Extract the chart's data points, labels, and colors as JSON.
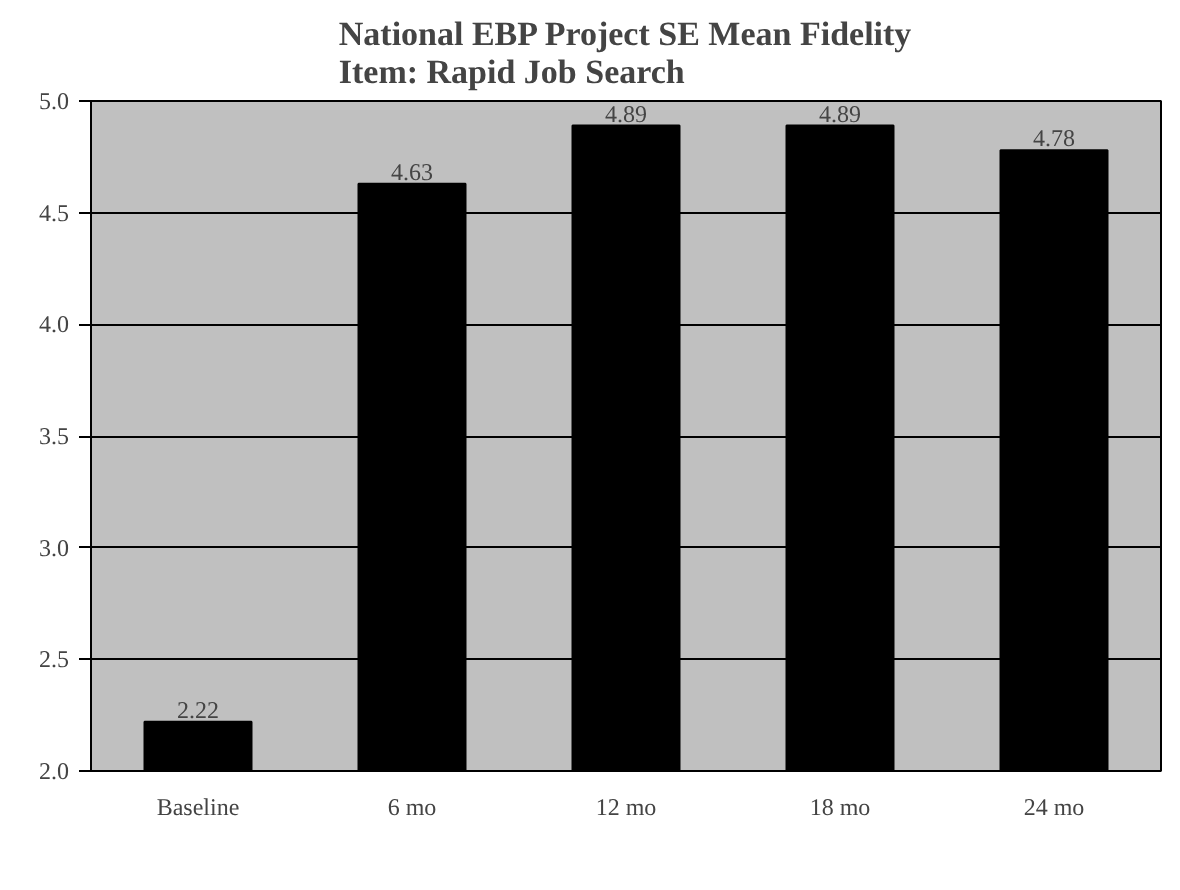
{
  "chart_data": {
    "type": "bar",
    "title": "National EBP Project SE Mean Fidelity\nItem: Rapid Job Search",
    "categories": [
      "Baseline",
      "6 mo",
      "12 mo",
      "18 mo",
      "24 mo"
    ],
    "values": [
      2.22,
      4.63,
      4.89,
      4.89,
      4.78
    ],
    "color": "#000000",
    "ylim": [
      2.0,
      5.0
    ],
    "yticks": [
      {
        "value": 2.0,
        "label": "2.0"
      },
      {
        "value": 2.5,
        "label": "2.5"
      },
      {
        "value": 3.0,
        "label": "3.0"
      },
      {
        "value": 3.5,
        "label": "3.5"
      },
      {
        "value": 4.0,
        "label": "4.0"
      },
      {
        "value": 4.5,
        "label": "4.5"
      },
      {
        "value": 5.0,
        "label": "5.0"
      }
    ],
    "grid": "y",
    "data_labels": true
  }
}
